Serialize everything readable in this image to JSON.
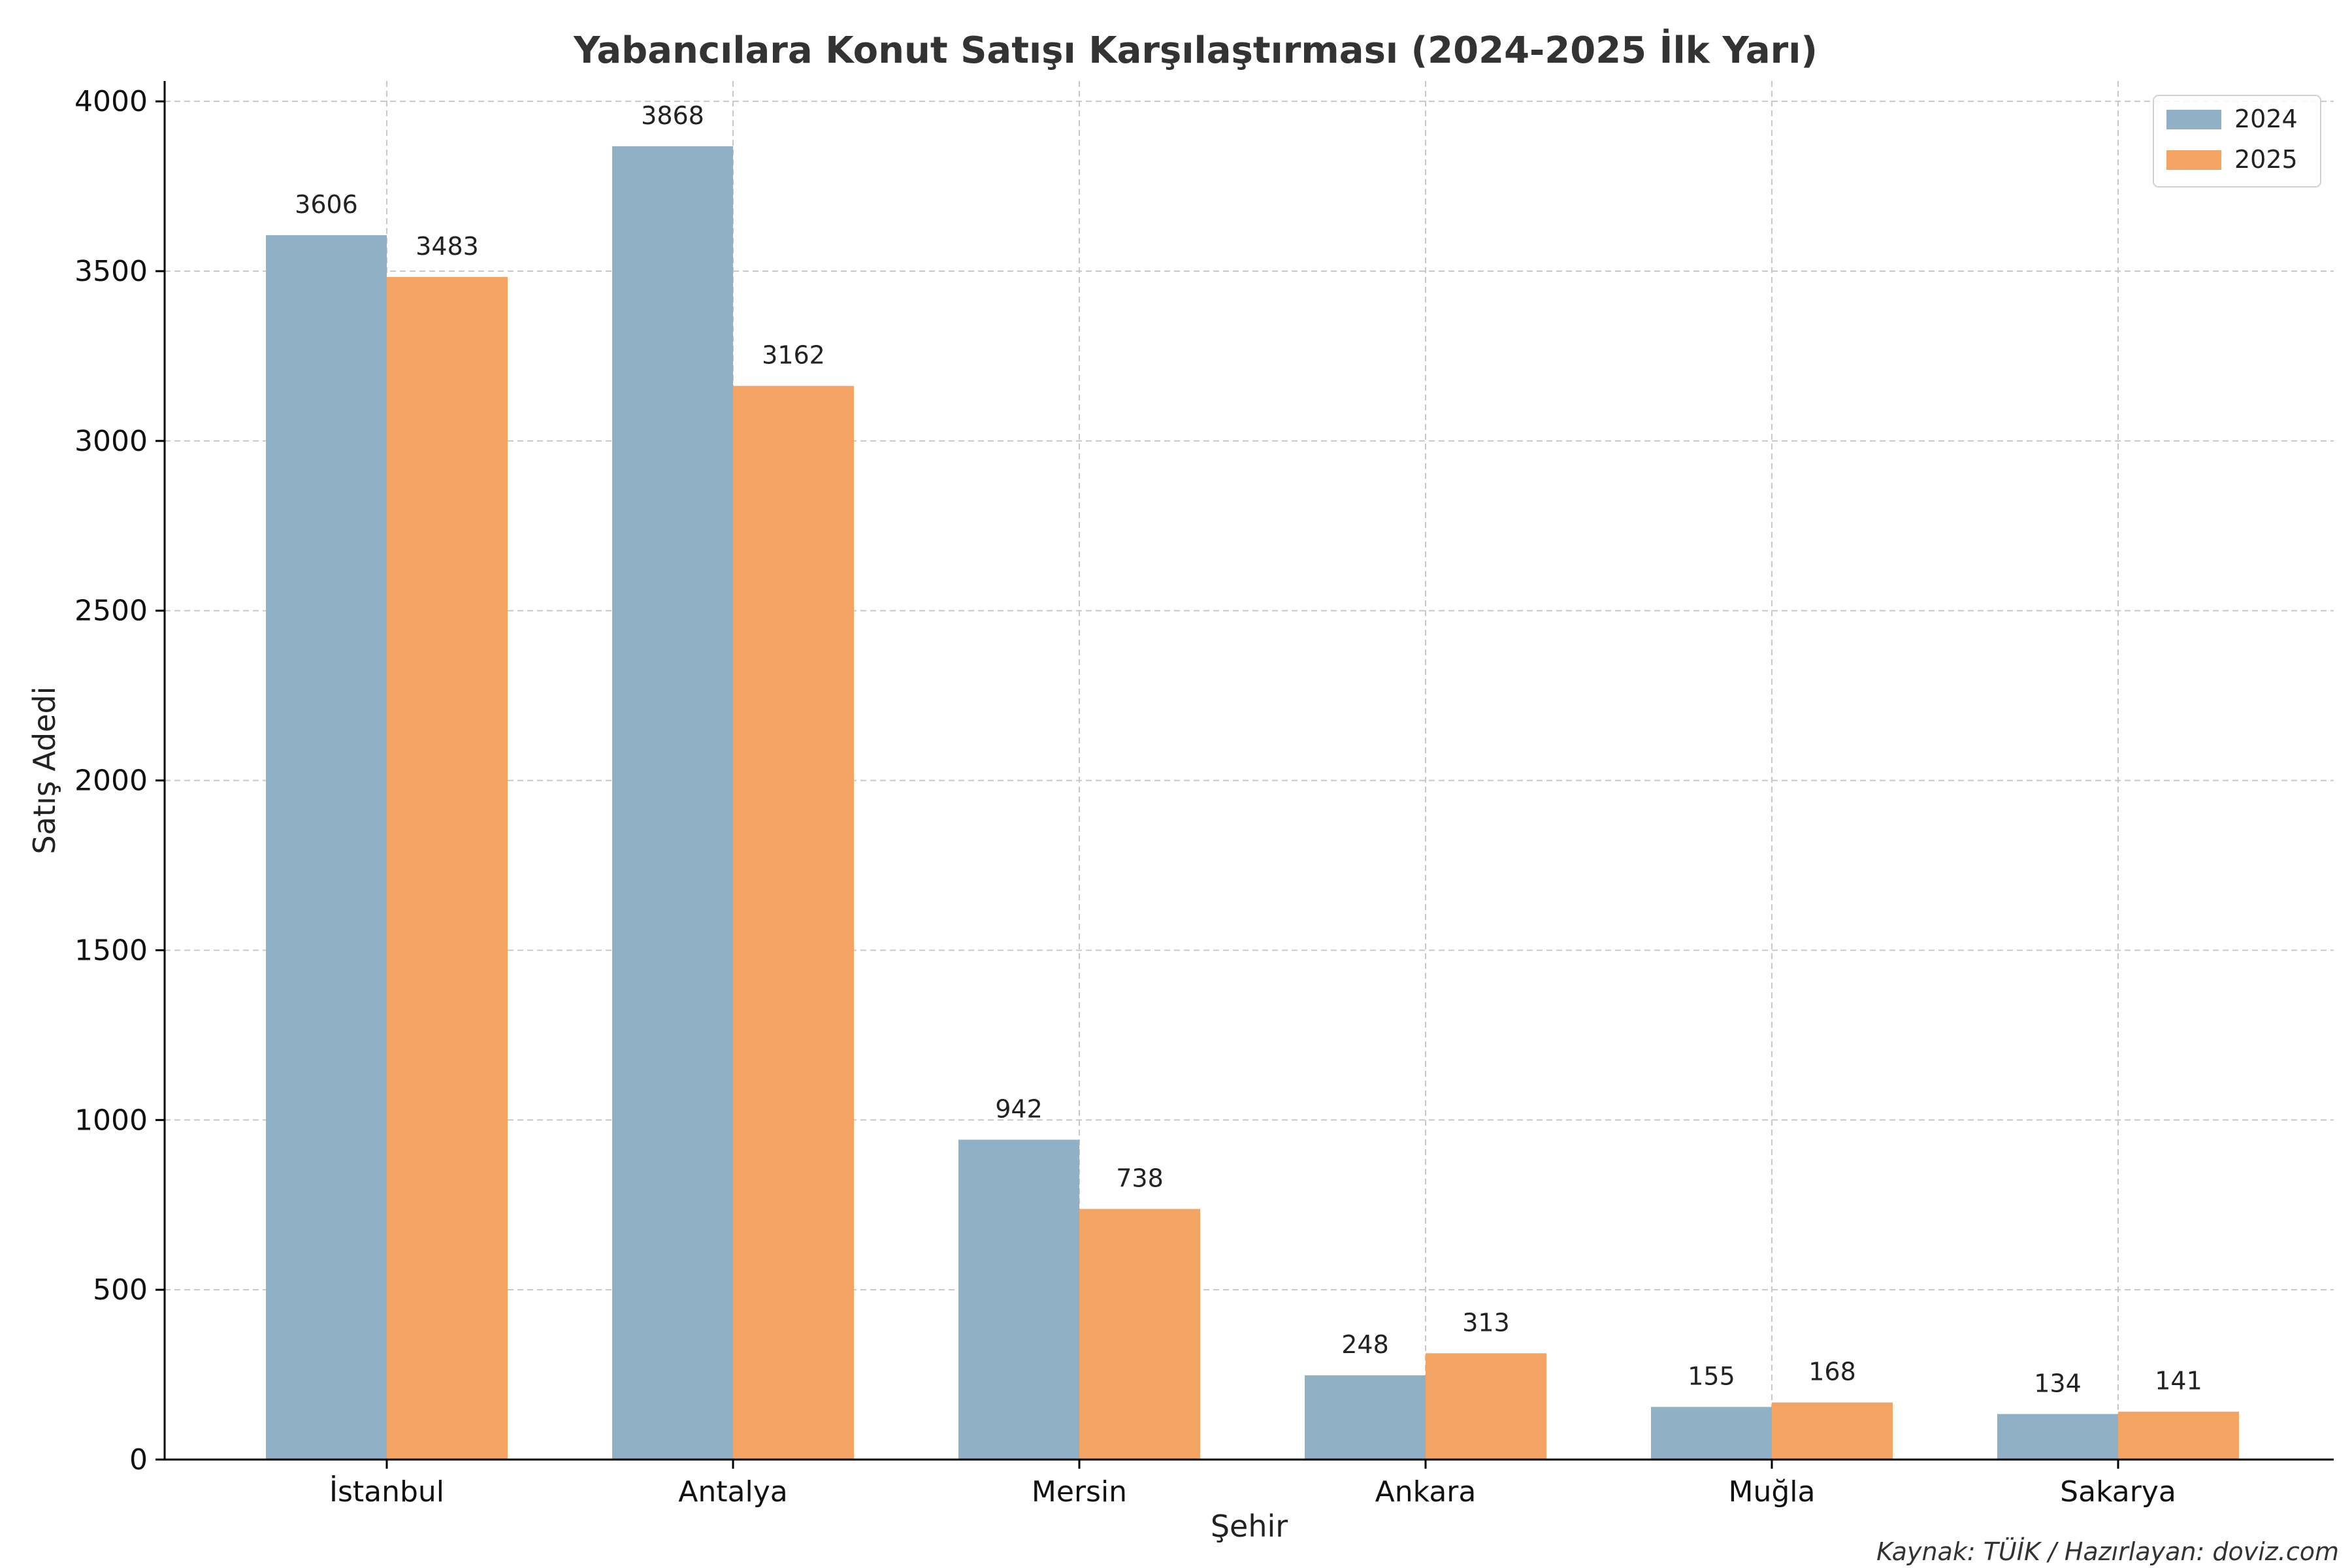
{
  "chart_data": {
    "type": "bar",
    "title": "Yabancılara Konut Satışı Karşılaştırması (2024-2025 İlk Yarı)",
    "xlabel": "Şehir",
    "ylabel": "Satış Adedi",
    "categories": [
      "İstanbul",
      "Antalya",
      "Mersin",
      "Ankara",
      "Muğla",
      "Sakarya"
    ],
    "series": [
      {
        "name": "2024",
        "values": [
          3606,
          3868,
          942,
          248,
          155,
          134
        ],
        "color": "#8FB0C7"
      },
      {
        "name": "2025",
        "values": [
          3483,
          3162,
          738,
          313,
          168,
          141
        ],
        "color": "#F3A362"
      }
    ],
    "ylim": [
      0,
      4060
    ],
    "yticks": [
      0,
      500,
      1000,
      1500,
      2000,
      2500,
      3000,
      3500,
      4000
    ],
    "grid": true,
    "legend_position": "top-right",
    "source": "Kaynak: TÜİK / Hazırlayan: doviz.com"
  }
}
